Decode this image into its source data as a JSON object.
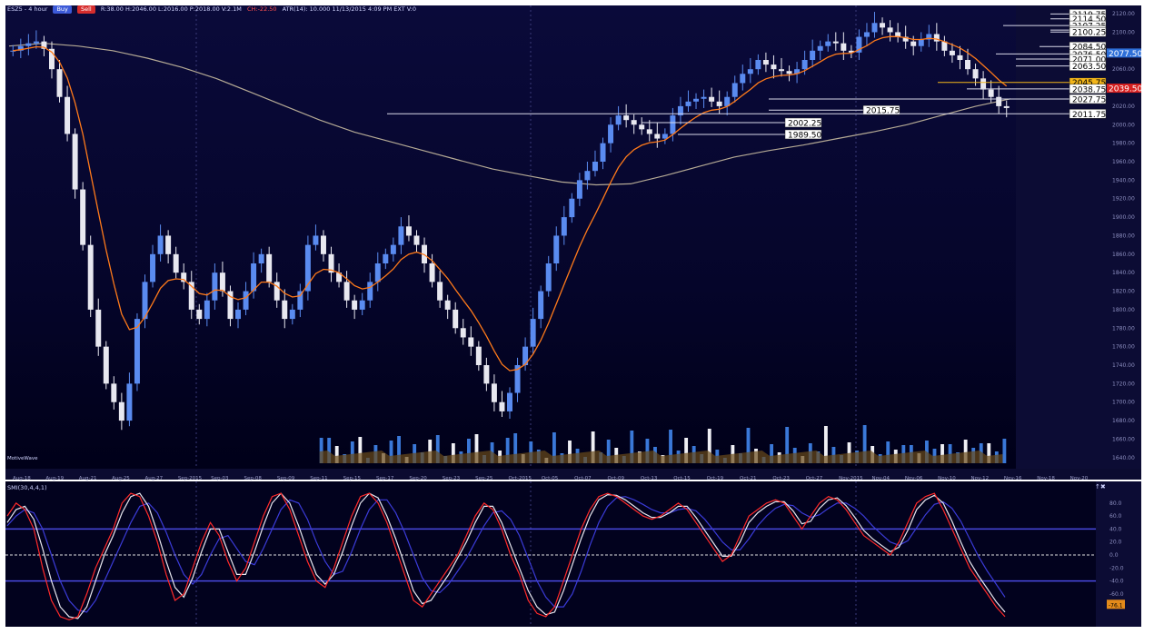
{
  "header": {
    "symbol": "ESZ5 - 4 hour",
    "buy_label": "Buy",
    "sell_label": "Sell",
    "ohlc_text": "R:38.00  H:2046.00  L:2016.00  P:2018.00  V:2.1M",
    "change_text": "CH:-22.50",
    "extra_text": "ATR(14): 10.000  11/13/2015 4:09 PM  EXT  V:0"
  },
  "volume_label": "MotiveWave",
  "oscillator_title": "SMI(30,4,4,1)",
  "chart_data": [
    {
      "type": "candlestick",
      "title": "",
      "y_axis_side": "right",
      "ylim": [
        1630,
        2125
      ],
      "yticks": [
        1640,
        1660,
        1680,
        1700,
        1720,
        1740,
        1760,
        1780,
        1800,
        1820,
        1840,
        1860,
        1880,
        1900,
        1920,
        1940,
        1960,
        1980,
        2000,
        2020,
        2040,
        2060,
        2080,
        2100,
        2120
      ],
      "x_tick_labels": [
        "Aug-18",
        "Aug-19",
        "Aug-21",
        "Aug-25",
        "Aug-27",
        "Sep-2015",
        "Sep-03",
        "Sep-08",
        "Sep-09",
        "Sep-11",
        "Sep-15",
        "Sep-17",
        "Sep-20",
        "Sep-23",
        "Sep-25",
        "Oct-2015",
        "Oct-05",
        "Oct-07",
        "Oct-09",
        "Oct-13",
        "Oct-15",
        "Oct-19",
        "Oct-21",
        "Oct-23",
        "Oct-27",
        "Nov-2015",
        "Nov-04",
        "Nov-06",
        "Nov-10",
        "Nov-12",
        "Nov-16",
        "Nov-18",
        "Nov-20"
      ],
      "price_path_close": [
        2080,
        2085,
        2088,
        2090,
        2082,
        2060,
        2030,
        1990,
        1930,
        1870,
        1800,
        1760,
        1720,
        1700,
        1680,
        1720,
        1790,
        1830,
        1860,
        1880,
        1860,
        1840,
        1830,
        1800,
        1790,
        1810,
        1840,
        1820,
        1790,
        1800,
        1820,
        1850,
        1860,
        1830,
        1810,
        1790,
        1800,
        1820,
        1870,
        1880,
        1860,
        1840,
        1830,
        1810,
        1800,
        1810,
        1830,
        1850,
        1860,
        1870,
        1890,
        1880,
        1870,
        1850,
        1830,
        1810,
        1800,
        1780,
        1770,
        1760,
        1740,
        1720,
        1700,
        1690,
        1710,
        1740,
        1760,
        1790,
        1820,
        1850,
        1880,
        1900,
        1920,
        1940,
        1950,
        1960,
        1980,
        2000,
        2010,
        2005,
        2000,
        1995,
        1990,
        1985,
        1990,
        2010,
        2020,
        2025,
        2028,
        2030,
        2025,
        2020,
        2030,
        2045,
        2055,
        2060,
        2070,
        2065,
        2060,
        2058,
        2055,
        2060,
        2070,
        2080,
        2085,
        2090,
        2088,
        2080,
        2078,
        2095,
        2100,
        2110,
        2105,
        2100,
        2095,
        2090,
        2085,
        2092,
        2098,
        2090,
        2080,
        2075,
        2070,
        2060,
        2050,
        2038,
        2030,
        2020,
        2018
      ],
      "moving_average_200_path": [
        2085,
        2088,
        2085,
        2080,
        2072,
        2062,
        2050,
        2035,
        2020,
        2005,
        1992,
        1982,
        1972,
        1962,
        1952,
        1945,
        1938,
        1935,
        1936,
        1945,
        1955,
        1965,
        1972,
        1978,
        1985,
        1992,
        2000,
        2010,
        2020,
        2028
      ],
      "orange_ma_path": "8-period EMA of close",
      "horizontal_levels": [
        {
          "label": "2119.75",
          "value": 2119.75,
          "style": "white"
        },
        {
          "label": "2114.50",
          "value": 2114.5,
          "style": "white"
        },
        {
          "label": "2107.25",
          "value": 2107.25,
          "style": "white"
        },
        {
          "label": "2102.25",
          "value": 2102.25,
          "style": "white"
        },
        {
          "label": "2100.25",
          "value": 2100.25,
          "style": "white"
        },
        {
          "label": "2084.50",
          "value": 2084.5,
          "style": "white"
        },
        {
          "label": "2076.50",
          "value": 2076.5,
          "style": "white"
        },
        {
          "label": "2071.00",
          "value": 2071.0,
          "style": "white"
        },
        {
          "label": "2063.50",
          "value": 2063.5,
          "style": "white"
        },
        {
          "label": "2045.75",
          "value": 2045.75,
          "style": "gold"
        },
        {
          "label": "2038.75",
          "value": 2038.75,
          "style": "white"
        },
        {
          "label": "2027.75",
          "value": 2027.75,
          "style": "white"
        },
        {
          "label": "2015.75",
          "value": 2015.75,
          "style": "white"
        },
        {
          "label": "2011.75",
          "value": 2011.75,
          "style": "white"
        },
        {
          "label": "2002.25",
          "value": 2002.25,
          "style": "white"
        },
        {
          "label": "1989.50",
          "value": 1989.5,
          "style": "white"
        }
      ],
      "price_tags": [
        {
          "label": "2077.50",
          "value": 2077.5,
          "color": "#2e6fd8"
        },
        {
          "label": "2039.50",
          "value": 2039.5,
          "color": "#d62020"
        }
      ],
      "colors": {
        "up_bar": "#5a8bf0",
        "down_bar": "#e8e8f0",
        "ema": "#ff7a1a",
        "ma200": "#b5aa95",
        "level_line": "#ffffff",
        "gold": "#f2b51a"
      }
    },
    {
      "type": "line",
      "title": "",
      "ylim": [
        -105,
        105
      ],
      "yticks": [
        80,
        60,
        40,
        20,
        0,
        -20,
        -40,
        -60,
        -80
      ],
      "reference_lines": [
        40,
        0,
        -40
      ],
      "series": [
        {
          "color": "#ff2a2a",
          "values": [
            60,
            80,
            70,
            40,
            -20,
            -70,
            -95,
            -100,
            -95,
            -60,
            -20,
            10,
            40,
            80,
            95,
            90,
            60,
            20,
            -30,
            -70,
            -60,
            -20,
            20,
            50,
            30,
            -10,
            -40,
            -20,
            20,
            60,
            90,
            95,
            70,
            30,
            -10,
            -40,
            -50,
            -20,
            20,
            60,
            90,
            95,
            80,
            50,
            10,
            -30,
            -70,
            -80,
            -60,
            -40,
            -20,
            0,
            30,
            60,
            80,
            70,
            40,
            0,
            -30,
            -70,
            -90,
            -95,
            -80,
            -40,
            0,
            40,
            70,
            90,
            95,
            90,
            80,
            70,
            60,
            55,
            60,
            70,
            80,
            70,
            50,
            30,
            10,
            -10,
            0,
            30,
            60,
            70,
            80,
            85,
            80,
            60,
            40,
            60,
            80,
            90,
            85,
            70,
            50,
            30,
            20,
            10,
            0,
            20,
            50,
            80,
            90,
            95,
            70,
            40,
            10,
            -20,
            -40,
            -60,
            -80,
            -95
          ]
        },
        {
          "color": "#e8e8f0",
          "values": [
            50,
            70,
            75,
            55,
            10,
            -40,
            -80,
            -95,
            -98,
            -80,
            -40,
            0,
            30,
            65,
            90,
            95,
            75,
            35,
            -10,
            -50,
            -65,
            -35,
            5,
            40,
            40,
            5,
            -30,
            -30,
            5,
            45,
            80,
            95,
            80,
            45,
            5,
            -30,
            -45,
            -30,
            5,
            45,
            80,
            95,
            88,
            60,
            25,
            -15,
            -55,
            -75,
            -70,
            -50,
            -30,
            -5,
            20,
            50,
            75,
            75,
            50,
            15,
            -20,
            -55,
            -80,
            -92,
            -88,
            -55,
            -15,
            25,
            60,
            85,
            93,
            92,
            85,
            75,
            65,
            58,
            58,
            65,
            75,
            75,
            58,
            38,
            18,
            -2,
            -2,
            20,
            50,
            65,
            75,
            82,
            82,
            68,
            48,
            52,
            72,
            85,
            88,
            76,
            58,
            38,
            25,
            15,
            5,
            12,
            38,
            70,
            85,
            92,
            80,
            52,
            20,
            -10,
            -32,
            -52,
            -72,
            -88
          ]
        },
        {
          "color": "#3b3bd8",
          "values": [
            45,
            60,
            70,
            65,
            40,
            0,
            -40,
            -70,
            -85,
            -88,
            -70,
            -40,
            -10,
            20,
            50,
            75,
            80,
            65,
            35,
            0,
            -30,
            -45,
            -30,
            0,
            25,
            30,
            10,
            -10,
            -15,
            10,
            40,
            70,
            85,
            80,
            55,
            20,
            -10,
            -30,
            -25,
            5,
            40,
            70,
            85,
            85,
            65,
            35,
            0,
            -35,
            -55,
            -58,
            -45,
            -25,
            -5,
            20,
            45,
            65,
            68,
            55,
            30,
            -5,
            -40,
            -65,
            -80,
            -80,
            -60,
            -25,
            15,
            50,
            75,
            88,
            90,
            85,
            78,
            70,
            65,
            65,
            70,
            72,
            68,
            55,
            38,
            20,
            8,
            8,
            25,
            45,
            60,
            72,
            78,
            76,
            65,
            58,
            62,
            72,
            80,
            80,
            72,
            60,
            45,
            32,
            20,
            15,
            22,
            42,
            62,
            78,
            82,
            72,
            52,
            25,
            -2,
            -25,
            -45,
            -65
          ]
        }
      ],
      "last_value_tag": "-76.1"
    }
  ]
}
